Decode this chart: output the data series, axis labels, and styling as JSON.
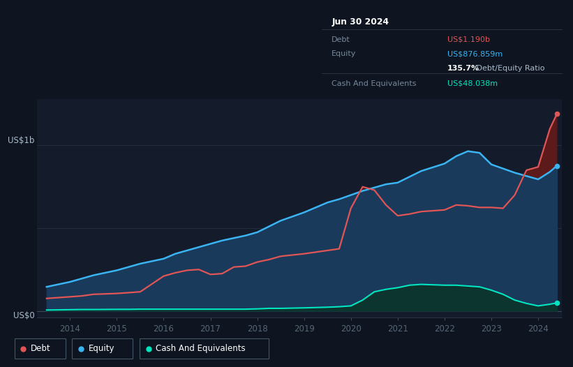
{
  "background_color": "#0e1520",
  "plot_bg_color": "#141c2b",
  "y_label_top": "US$1b",
  "y_label_bottom": "US$0",
  "x_ticks": [
    "2014",
    "2015",
    "2016",
    "2017",
    "2018",
    "2019",
    "2020",
    "2021",
    "2022",
    "2023",
    "2024"
  ],
  "tooltip": {
    "date": "Jun 30 2024",
    "debt_label": "Debt",
    "debt_value": "US$1.190b",
    "equity_label": "Equity",
    "equity_value": "US$876.859m",
    "ratio_bold": "135.7%",
    "ratio_rest": " Debt/Equity Ratio",
    "cash_label": "Cash And Equivalents",
    "cash_value": "US$48.038m"
  },
  "debt_color": "#e05555",
  "equity_color": "#3ab4f2",
  "cash_color": "#00e5c0",
  "fill_equity_color": "#1a3a5c",
  "fill_debt_over_color": "#5c1a1a",
  "fill_cash_color": "#0d3530",
  "years": [
    2013.5,
    2014.0,
    2014.25,
    2014.5,
    2015.0,
    2015.25,
    2015.5,
    2016.0,
    2016.25,
    2016.5,
    2016.75,
    2017.0,
    2017.25,
    2017.5,
    2017.75,
    2018.0,
    2018.25,
    2018.5,
    2019.0,
    2019.25,
    2019.5,
    2019.75,
    2020.0,
    2020.25,
    2020.5,
    2020.75,
    2021.0,
    2021.25,
    2021.5,
    2022.0,
    2022.25,
    2022.5,
    2022.75,
    2023.0,
    2023.25,
    2023.5,
    2023.75,
    2024.0,
    2024.25,
    2024.4
  ],
  "debt": [
    0.075,
    0.085,
    0.09,
    0.1,
    0.105,
    0.11,
    0.115,
    0.21,
    0.23,
    0.245,
    0.25,
    0.22,
    0.225,
    0.265,
    0.27,
    0.295,
    0.31,
    0.33,
    0.345,
    0.355,
    0.365,
    0.375,
    0.62,
    0.75,
    0.73,
    0.64,
    0.575,
    0.585,
    0.6,
    0.61,
    0.64,
    0.635,
    0.625,
    0.625,
    0.62,
    0.7,
    0.85,
    0.87,
    1.1,
    1.19
  ],
  "equity": [
    0.145,
    0.175,
    0.195,
    0.215,
    0.245,
    0.265,
    0.285,
    0.315,
    0.345,
    0.365,
    0.385,
    0.405,
    0.425,
    0.44,
    0.455,
    0.475,
    0.51,
    0.545,
    0.595,
    0.625,
    0.655,
    0.675,
    0.7,
    0.725,
    0.745,
    0.765,
    0.775,
    0.81,
    0.845,
    0.89,
    0.935,
    0.965,
    0.955,
    0.885,
    0.86,
    0.835,
    0.815,
    0.795,
    0.84,
    0.877
  ],
  "cash": [
    0.005,
    0.007,
    0.008,
    0.008,
    0.009,
    0.009,
    0.01,
    0.01,
    0.01,
    0.01,
    0.01,
    0.01,
    0.01,
    0.01,
    0.01,
    0.012,
    0.015,
    0.015,
    0.018,
    0.02,
    0.022,
    0.025,
    0.03,
    0.065,
    0.115,
    0.13,
    0.14,
    0.155,
    0.16,
    0.155,
    0.155,
    0.15,
    0.145,
    0.125,
    0.1,
    0.065,
    0.045,
    0.03,
    0.04,
    0.048
  ],
  "xlim": [
    2013.3,
    2024.5
  ],
  "ylim": [
    -0.04,
    1.28
  ]
}
